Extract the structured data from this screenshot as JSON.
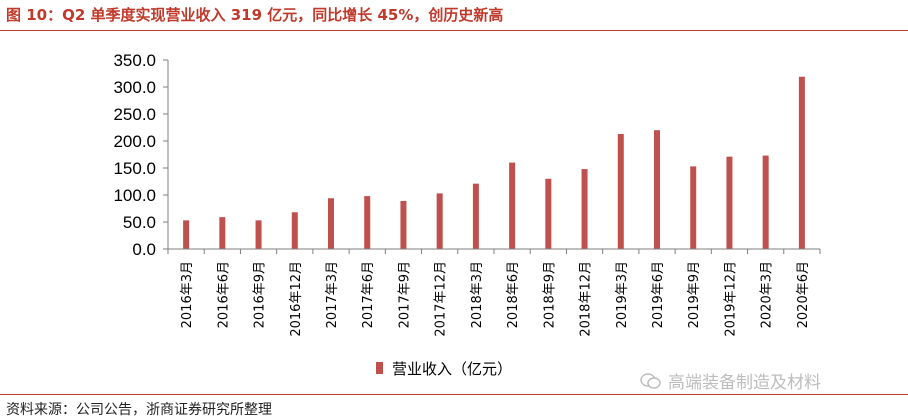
{
  "title": "图 10：Q2 单季度实现营业收入 319 亿元，同比增长 45%，创历史新高",
  "source": "资料来源：公司公告，浙商证券研究所整理",
  "watermark": "高端装备制造及材料",
  "colors": {
    "bar": "#c0504d",
    "rule": "#c0392b",
    "title": "#c0392b"
  },
  "chart_data": {
    "type": "bar",
    "categories": [
      "2016年3月",
      "2016年6月",
      "2016年9月",
      "2016年12月",
      "2017年3月",
      "2017年6月",
      "2017年9月",
      "2017年12月",
      "2018年3月",
      "2018年6月",
      "2018年9月",
      "2018年12月",
      "2019年3月",
      "2019年6月",
      "2019年9月",
      "2019年12月",
      "2020年3月",
      "2020年6月"
    ],
    "series": [
      {
        "name": "营业收入（亿元）",
        "values": [
          53,
          59,
          53,
          68,
          94,
          98,
          89,
          103,
          121,
          160,
          130,
          148,
          213,
          220,
          153,
          171,
          173,
          319
        ]
      }
    ],
    "yticks": [
      "0.0",
      "50.0",
      "100.0",
      "150.0",
      "200.0",
      "250.0",
      "300.0",
      "350.0"
    ],
    "ylim": [
      0,
      350
    ],
    "grid": false,
    "legend": "bottom"
  }
}
